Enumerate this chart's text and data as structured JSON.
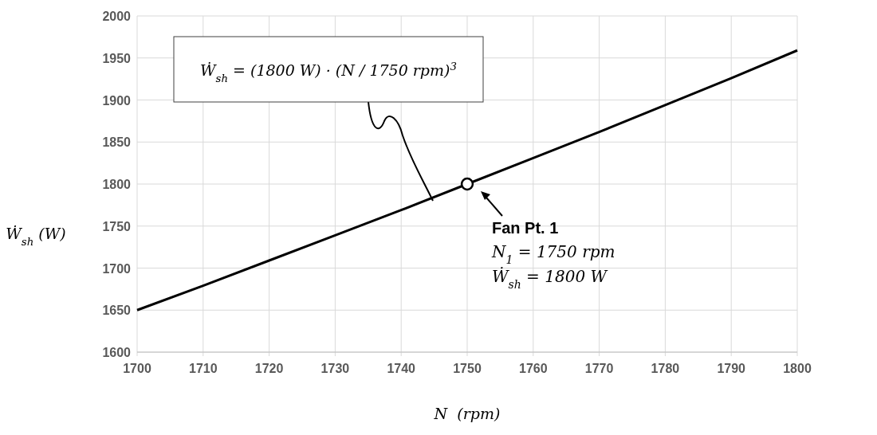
{
  "chart_data": {
    "type": "line",
    "xlabel": "N  (rpm)",
    "ylabel": "Ẇ$_{sh}$ (W)",
    "xlim": [
      1700,
      1800
    ],
    "xticks": [
      1700,
      1710,
      1720,
      1730,
      1740,
      1750,
      1760,
      1770,
      1780,
      1790,
      1800
    ],
    "ylim": [
      1600,
      2000
    ],
    "yticks": [
      1600,
      1650,
      1700,
      1750,
      1800,
      1850,
      1900,
      1950,
      2000
    ],
    "grid": true,
    "series": [
      {
        "color": "#000000",
        "marker": "none",
        "x": [
          1700,
          1710,
          1720,
          1730,
          1740,
          1750,
          1760,
          1770,
          1780,
          1790,
          1800
        ],
        "values": [
          1650,
          1679,
          1709,
          1739,
          1769,
          1800,
          1831,
          1862,
          1894,
          1926,
          1959
        ]
      },
      {
        "type": "scatter",
        "color": "#000000",
        "marker": "circle",
        "x": [
          1750
        ],
        "values": [
          1800
        ]
      }
    ],
    "annotations": [
      "Ẇ$_{sh}$ = (1800 W) · (N / 1750 rpm)$^{3}$",
      "Fan Pt. 1",
      "N$_{1}$ = 1750 rpm",
      "Ẇ$_{sh}$ = 1800 W"
    ]
  }
}
